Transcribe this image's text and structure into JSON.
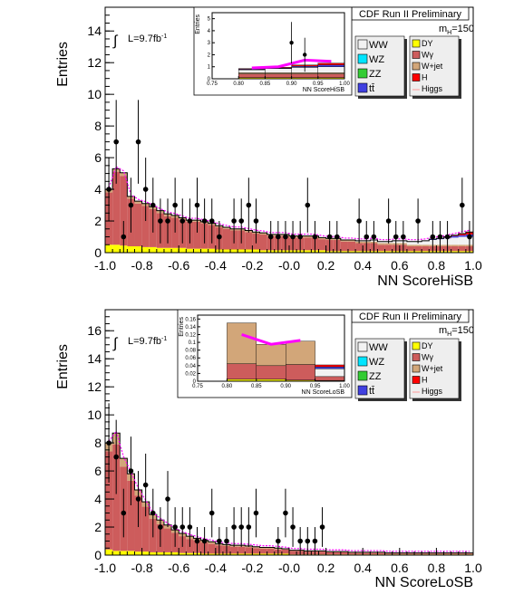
{
  "chart_data": [
    {
      "type": "bar",
      "subtype": "stacked-histogram",
      "title": "CDF Run II Preliminary",
      "mass_label": "m",
      "mass_sub": "H",
      "mass_value": "=150",
      "lumi_label": "L=9.7fb",
      "lumi_sup": "-1",
      "xlabel": "NN ScoreHiSB",
      "ylabel": "Entries",
      "xlim": [
        -1.0,
        1.0
      ],
      "ylim": [
        0,
        15.5
      ],
      "xticks": [
        "-1.0",
        "-0.8",
        "-0.6",
        "-0.4",
        "-0.2",
        "-0.0",
        "0.2",
        "0.4",
        "0.6",
        "0.8",
        "1.0"
      ],
      "yticks": [
        "0",
        "2",
        "4",
        "6",
        "8",
        "10",
        "12",
        "14"
      ],
      "bin_edges_start": -1.0,
      "bin_width": 0.04,
      "background_stack": [
        {
          "name": "DY",
          "color": "#ffff00",
          "values": [
            0.5,
            0.5,
            0.45,
            0.4,
            0.4,
            0.35,
            0.35,
            0.3,
            0.3,
            0.3,
            0.3,
            0.25,
            0.25,
            0.25,
            0.25,
            0.2,
            0.2,
            0.2,
            0.2,
            0.2,
            0.2,
            0.15,
            0.15,
            0.15,
            0.15,
            0.15,
            0.15,
            0.15,
            0.15,
            0.15,
            0.1,
            0.1,
            0.1,
            0.1,
            0.1,
            0.1,
            0.1,
            0.1,
            0.1,
            0.1,
            0.1,
            0.1,
            0.1,
            0.1,
            0.1,
            0.1,
            0.1,
            0.1,
            0.1,
            0.1
          ]
        },
        {
          "name": "Wγ",
          "color": "#cd5c5c",
          "values": [
            3.3,
            4.6,
            4.4,
            3.0,
            2.7,
            2.6,
            2.4,
            2.2,
            2.0,
            1.9,
            1.8,
            1.7,
            1.7,
            1.6,
            1.5,
            1.4,
            1.3,
            1.2,
            1.2,
            1.1,
            1.0,
            1.0,
            0.9,
            0.9,
            0.9,
            0.8,
            0.8,
            0.8,
            0.8,
            0.7,
            0.7,
            0.7,
            0.6,
            0.6,
            0.5,
            0.5,
            0.5,
            0.4,
            0.4,
            0.4,
            0.4,
            0.3,
            0.3,
            0.3,
            0.3,
            0.3,
            0.3,
            0.3,
            0.3,
            0.3
          ]
        },
        {
          "name": "W+jet",
          "color": "#d2a679",
          "values": [
            0.2,
            0.2,
            0.2,
            0.15,
            0.15,
            0.15,
            0.15,
            0.15,
            0.15,
            0.15,
            0.1,
            0.1,
            0.1,
            0.1,
            0.1,
            0.1,
            0.1,
            0.1,
            0.1,
            0.1,
            0.1,
            0.1,
            0.1,
            0.1,
            0.1,
            0.1,
            0.1,
            0.1,
            0.1,
            0.1,
            0.1,
            0.1,
            0.1,
            0.1,
            0.1,
            0.1,
            0.1,
            0.1,
            0.1,
            0.1,
            0.1,
            0.1,
            0.1,
            0.1,
            0.1,
            0.1,
            0.1,
            0.1,
            0.1,
            0.1
          ]
        },
        {
          "name": "WW",
          "color": "#f2f2f2",
          "values": [
            0,
            0,
            0,
            0,
            0,
            0,
            0,
            0,
            0,
            0,
            0,
            0,
            0,
            0,
            0,
            0,
            0,
            0,
            0,
            0,
            0,
            0,
            0,
            0,
            0,
            0,
            0,
            0,
            0,
            0,
            0,
            0,
            0,
            0,
            0.05,
            0.05,
            0.1,
            0.1,
            0.1,
            0.15,
            0.15,
            0.2,
            0.2,
            0.25,
            0.3,
            0.35,
            0.4,
            0.45,
            0.5,
            0.5
          ]
        },
        {
          "name": "tt̄",
          "color": "#4040e0",
          "values": [
            0,
            0,
            0,
            0,
            0,
            0,
            0,
            0,
            0,
            0,
            0,
            0,
            0,
            0,
            0,
            0,
            0,
            0,
            0,
            0,
            0,
            0,
            0,
            0,
            0,
            0,
            0,
            0,
            0,
            0,
            0,
            0,
            0,
            0,
            0,
            0,
            0,
            0,
            0,
            0,
            0,
            0,
            0,
            0,
            0.05,
            0.05,
            0.05,
            0.1,
            0.1,
            0.15
          ]
        },
        {
          "name": "H",
          "color": "#ff0000",
          "values": [
            0,
            0,
            0,
            0,
            0,
            0,
            0,
            0,
            0,
            0,
            0,
            0,
            0,
            0,
            0,
            0,
            0,
            0,
            0,
            0,
            0,
            0,
            0,
            0,
            0,
            0,
            0,
            0,
            0,
            0,
            0,
            0,
            0,
            0,
            0,
            0,
            0,
            0,
            0,
            0,
            0,
            0,
            0,
            0,
            0,
            0,
            0.05,
            0.05,
            0.1,
            0.15
          ]
        }
      ],
      "signal_line": {
        "name": "Higgs",
        "color": "#ff00ff"
      },
      "data_points": {
        "x": [
          -0.98,
          -0.94,
          -0.9,
          -0.86,
          -0.82,
          -0.78,
          -0.74,
          -0.7,
          -0.66,
          -0.62,
          -0.58,
          -0.54,
          -0.5,
          -0.46,
          -0.42,
          -0.38,
          -0.3,
          -0.26,
          -0.22,
          -0.18,
          -0.1,
          -0.06,
          -0.02,
          0.02,
          0.06,
          0.1,
          0.14,
          0.22,
          0.26,
          0.38,
          0.42,
          0.46,
          0.54,
          0.58,
          0.62,
          0.7,
          0.78,
          0.82,
          0.86,
          0.94,
          0.98
        ],
        "y": [
          4,
          7,
          1,
          3,
          7,
          4,
          3,
          2,
          2,
          3,
          2,
          2,
          3,
          2,
          2,
          1,
          2,
          2,
          3,
          2,
          1,
          1,
          1,
          1,
          1,
          3,
          1,
          1,
          1,
          2,
          1,
          1,
          2,
          1,
          1,
          2,
          1,
          1,
          1,
          3,
          1
        ]
      },
      "inset": {
        "xlabel": "NN ScoreHiSB",
        "ylabel": "Entries",
        "xlim": [
          0.75,
          1.0
        ],
        "ylim": [
          0,
          5.5
        ],
        "xticks": [
          "0.75",
          "0.80",
          "0.85",
          "0.90",
          "0.95",
          "1.00"
        ],
        "yticks": [
          "0",
          "1",
          "2",
          "3",
          "4",
          "5"
        ],
        "bin_edges": [
          0.8,
          0.85,
          0.9,
          0.95,
          1.0
        ],
        "stack": {
          "DY": [
            0.1,
            0.1,
            0.1,
            0.1
          ],
          "Wγ": [
            0.3,
            0.3,
            0.3,
            0.3
          ],
          "W+jet": [
            0.1,
            0.1,
            0.1,
            0.1
          ],
          "WW": [
            0.25,
            0.35,
            0.45,
            0.5
          ],
          "tt̄": [
            0.05,
            0.05,
            0.1,
            0.15
          ],
          "H": [
            0.05,
            0.05,
            0.1,
            0.15
          ]
        },
        "signal": [
          0.9,
          1.0,
          1.55,
          1.45
        ],
        "data_x": [
          0.9,
          0.925
        ],
        "data_y": [
          3,
          2
        ]
      },
      "legend": [
        "WW",
        "WZ",
        "ZZ",
        "tt̄",
        "DY",
        "Wγ",
        "W+jet",
        "H",
        "Higgs"
      ]
    },
    {
      "type": "bar",
      "subtype": "stacked-histogram",
      "title": "CDF Run II Preliminary",
      "mass_label": "m",
      "mass_sub": "H",
      "mass_value": "=150",
      "lumi_label": "L=9.7fb",
      "lumi_sup": "-1",
      "xlabel": "NN ScoreLoSB",
      "ylabel": "Entries",
      "xlim": [
        -1.0,
        1.0
      ],
      "ylim": [
        0,
        17.5
      ],
      "xticks": [
        "-1.0",
        "-0.8",
        "-0.6",
        "-0.4",
        "-0.2",
        "-0.0",
        "0.2",
        "0.4",
        "0.6",
        "0.8",
        "1.0"
      ],
      "yticks": [
        "0",
        "2",
        "4",
        "6",
        "8",
        "10",
        "12",
        "14",
        "16"
      ],
      "bin_edges_start": -1.0,
      "bin_width": 0.04,
      "background_stack": [
        {
          "name": "DY",
          "color": "#ffff00",
          "values": [
            0.4,
            0.3,
            0.3,
            0.3,
            0.25,
            0.25,
            0.2,
            0.2,
            0.2,
            0.2,
            0.15,
            0.15,
            0.15,
            0.1,
            0.1,
            0.1,
            0.1,
            0.1,
            0.1,
            0.1,
            0.1,
            0.1,
            0.1,
            0.1,
            0.1,
            0.05,
            0.05,
            0.05,
            0.05,
            0.05,
            0.05,
            0.05,
            0.05,
            0.05,
            0.05,
            0.05,
            0.05,
            0.05,
            0.05,
            0.05,
            0.05,
            0.05,
            0.05,
            0.05,
            0.05,
            0.05,
            0.05,
            0.05,
            0.05,
            0.05
          ]
        },
        {
          "name": "Wγ",
          "color": "#cd5c5c",
          "values": [
            7.0,
            7.6,
            6.0,
            5.0,
            4.0,
            3.2,
            2.4,
            2.0,
            1.7,
            1.4,
            1.2,
            1.0,
            0.9,
            0.8,
            0.7,
            0.6,
            0.55,
            0.5,
            0.5,
            0.45,
            0.4,
            0.35,
            0.35,
            0.3,
            0.3,
            0.25,
            0.25,
            0.2,
            0.2,
            0.2,
            0.15,
            0.15,
            0.15,
            0.1,
            0.1,
            0.1,
            0.1,
            0.1,
            0.05,
            0.05,
            0.05,
            0.05,
            0.05,
            0.05,
            0.05,
            0.05,
            0.05,
            0.05,
            0.05,
            0.05
          ]
        },
        {
          "name": "W+jet",
          "color": "#d2a679",
          "values": [
            0.6,
            0.8,
            0.6,
            0.5,
            0.4,
            0.35,
            0.3,
            0.3,
            0.25,
            0.2,
            0.2,
            0.2,
            0.15,
            0.15,
            0.15,
            0.1,
            0.1,
            0.1,
            0.1,
            0.1,
            0.1,
            0.1,
            0.1,
            0.1,
            0.05,
            0.05,
            0.05,
            0.05,
            0.05,
            0.05,
            0.05,
            0.05,
            0.05,
            0.05,
            0.05,
            0.05,
            0.05,
            0.05,
            0.05,
            0.05,
            0.05,
            0.05,
            0.05,
            0.05,
            0.05,
            0.05,
            0.05,
            0.05,
            0.05,
            0.05
          ]
        },
        {
          "name": "WW",
          "color": "#f2f2f2",
          "values": [
            0,
            0,
            0,
            0,
            0,
            0,
            0,
            0,
            0,
            0,
            0,
            0,
            0,
            0,
            0,
            0,
            0,
            0,
            0,
            0,
            0,
            0,
            0,
            0,
            0,
            0,
            0,
            0,
            0,
            0,
            0,
            0,
            0,
            0,
            0,
            0,
            0,
            0,
            0,
            0,
            0,
            0,
            0,
            0,
            0,
            0,
            0,
            0,
            0,
            0
          ]
        }
      ],
      "signal_line": {
        "name": "Higgs",
        "color": "#ff00ff"
      },
      "data_points": {
        "x": [
          -0.98,
          -0.94,
          -0.9,
          -0.86,
          -0.82,
          -0.78,
          -0.74,
          -0.7,
          -0.66,
          -0.62,
          -0.58,
          -0.54,
          -0.5,
          -0.46,
          -0.42,
          -0.38,
          -0.34,
          -0.3,
          -0.26,
          -0.22,
          -0.18,
          -0.06,
          -0.02,
          0.02,
          0.06,
          0.1,
          0.14,
          0.18
        ],
        "y": [
          8,
          7,
          3,
          6,
          4,
          5,
          3,
          2,
          4,
          2,
          2,
          2,
          1,
          1,
          3,
          1,
          1,
          2,
          2,
          2,
          3,
          1,
          3,
          2,
          1,
          1,
          1,
          2
        ]
      },
      "inset": {
        "xlabel": "NN ScoreLoSB",
        "ylabel": "Entries",
        "xlim": [
          0.75,
          1.0
        ],
        "ylim": [
          0,
          0.17
        ],
        "xticks": [
          "0.75",
          "0.80",
          "0.85",
          "0.90",
          "0.95",
          "1.00"
        ],
        "yticks": [
          "0",
          "0.02",
          "0.04",
          "0.06",
          "0.08",
          "0.1",
          "0.12",
          "0.14",
          "0.16"
        ],
        "bin_edges": [
          0.8,
          0.85,
          0.9,
          0.95,
          1.0
        ],
        "stack": {
          "DY": [
            0.005,
            0.005,
            0.003,
            0.002
          ],
          "Wγ": [
            0.04,
            0.035,
            0.04,
            0.01
          ],
          "W+jet": [
            0.105,
            0.055,
            0.06,
            0.0
          ],
          "WW": [
            0.0,
            0.0,
            0.0,
            0.02
          ],
          "tt̄": [
            0.0,
            0.0,
            0.0,
            0.005
          ],
          "H": [
            0.0,
            0.0,
            0.0,
            0.005
          ]
        },
        "signal": [
          0.12,
          0.095,
          0.105,
          0.0
        ],
        "data_x": [],
        "data_y": []
      },
      "legend": [
        "WW",
        "WZ",
        "ZZ",
        "tt̄",
        "DY",
        "Wγ",
        "W+jet",
        "H",
        "Higgs"
      ]
    }
  ],
  "colors": {
    "WW": "#f2f2f2",
    "WZ": "#00e5ff",
    "ZZ": "#33cc33",
    "tt": "#4040e0",
    "DY": "#ffff00",
    "Wgamma": "#cd5c5c",
    "Wjet": "#d2a679",
    "H": "#ff0000",
    "Higgs": "#ff9999",
    "signal": "#ff00ff"
  }
}
